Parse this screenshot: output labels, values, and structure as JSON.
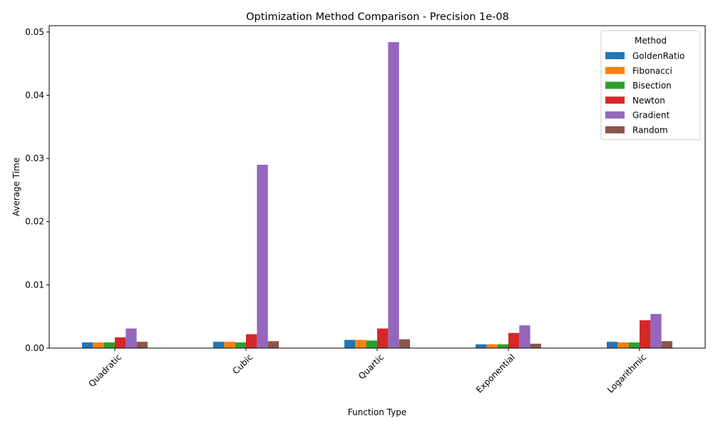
{
  "chart_data": {
    "type": "bar",
    "title": "Optimization Method Comparison - Precision 1e-08",
    "xlabel": "Function Type",
    "ylabel": "Average Time",
    "ylim": [
      0,
      0.051
    ],
    "yticks": [
      "0.00",
      "0.01",
      "0.02",
      "0.03",
      "0.04",
      "0.05"
    ],
    "ytick_values": [
      0,
      0.01,
      0.02,
      0.03,
      0.04,
      0.05
    ],
    "categories": [
      "Quadratic",
      "Cubic",
      "Quartic",
      "Exponential",
      "Logarithmic"
    ],
    "legend": {
      "title": "Method",
      "placement": "top-right"
    },
    "grid": false,
    "series": [
      {
        "name": "GoldenRatio",
        "color": "#1f77b4",
        "values": [
          0.0009,
          0.001,
          0.0013,
          0.0006,
          0.001
        ]
      },
      {
        "name": "Fibonacci",
        "color": "#ff7f0e",
        "values": [
          0.0009,
          0.001,
          0.0013,
          0.0006,
          0.0009
        ]
      },
      {
        "name": "Bisection",
        "color": "#2ca02c",
        "values": [
          0.0009,
          0.0009,
          0.0012,
          0.0006,
          0.0009
        ]
      },
      {
        "name": "Newton",
        "color": "#d62728",
        "values": [
          0.0017,
          0.0022,
          0.0031,
          0.0024,
          0.0044
        ]
      },
      {
        "name": "Gradient",
        "color": "#9467bd",
        "values": [
          0.0031,
          0.029,
          0.0484,
          0.0036,
          0.0054
        ]
      },
      {
        "name": "Random",
        "color": "#8c564b",
        "values": [
          0.001,
          0.0011,
          0.0014,
          0.0007,
          0.0011
        ]
      }
    ]
  }
}
